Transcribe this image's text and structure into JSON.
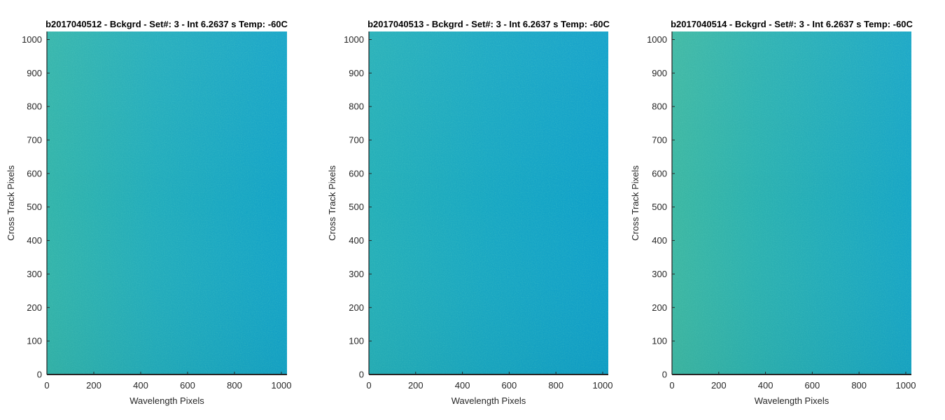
{
  "chart_data": [
    {
      "type": "heatmap",
      "title": "b2017040512 - Bckgrd - Set#: 3 - Int 6.2637 s Temp: -60C",
      "xlabel": "Wavelength Pixels",
      "ylabel": "Cross Track Pixels",
      "xlim": [
        0,
        1024
      ],
      "ylim": [
        0,
        1024
      ],
      "xticks": [
        0,
        200,
        400,
        600,
        800,
        1000
      ],
      "yticks": [
        0,
        100,
        200,
        300,
        400,
        500,
        600,
        700,
        800,
        900,
        1000
      ],
      "grid": false,
      "legend": "none",
      "colors": {
        "low": "#0e9fca",
        "mid": "#20abc0",
        "high": "#4cba9a"
      }
    },
    {
      "type": "heatmap",
      "title": "b2017040513 - Bckgrd - Set#: 3 - Int 6.2637 s Temp: -60C",
      "xlabel": "Wavelength Pixels",
      "ylabel": "Cross Track Pixels",
      "xlim": [
        0,
        1024
      ],
      "ylim": [
        0,
        1024
      ],
      "xticks": [
        0,
        200,
        400,
        600,
        800,
        1000
      ],
      "yticks": [
        0,
        100,
        200,
        300,
        400,
        500,
        600,
        700,
        800,
        900,
        1000
      ],
      "grid": false,
      "legend": "none",
      "colors": {
        "low": "#0e9fca",
        "mid": "#20abc0",
        "high": "#4cba9a"
      }
    },
    {
      "type": "heatmap",
      "title": "b2017040514 - Bckgrd - Set#: 3 - Int 6.2637 s Temp: -60C",
      "xlabel": "Wavelength Pixels",
      "ylabel": "Cross Track Pixels",
      "xlim": [
        0,
        1024
      ],
      "ylim": [
        0,
        1024
      ],
      "xticks": [
        0,
        200,
        400,
        600,
        800,
        1000
      ],
      "yticks": [
        0,
        100,
        200,
        300,
        400,
        500,
        600,
        700,
        800,
        900,
        1000
      ],
      "grid": false,
      "legend": "none",
      "colors": {
        "low": "#0e9fca",
        "mid": "#20abc0",
        "high": "#4cba9a"
      }
    }
  ]
}
